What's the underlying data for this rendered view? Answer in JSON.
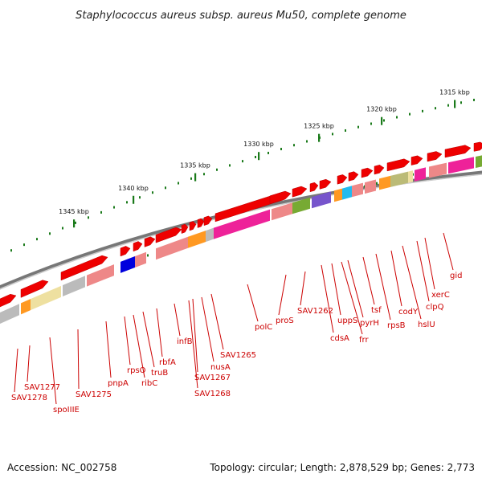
{
  "title": "Staphylococcus aureus subsp. aureus Mu50, complete genome",
  "footer": {
    "accession": "Accession: NC_002758",
    "topology": "Topology: circular; Length: 2,878,529 bp; Genes: 2,773"
  },
  "scale": {
    "tick_labels": [
      "1315 kbp",
      "1320 kbp",
      "1325 kbp",
      "1330 kbp",
      "1335 kbp",
      "1340 kbp",
      "1345 kbp"
    ]
  },
  "genes": [
    "gid",
    "xerC",
    "clpQ",
    "hslU",
    "codY",
    "rpsB",
    "tsf",
    "pyrH",
    "frr",
    "uppS",
    "cdsA",
    "SAV1262",
    "proS",
    "polC",
    "SAV1265",
    "nusA",
    "SAV1267",
    "SAV1268",
    "infB",
    "rbfA",
    "truB",
    "ribC",
    "rpsO",
    "pnpA",
    "SAV1275",
    "spoIIIE",
    "SAV1277",
    "SAV1278"
  ],
  "colors": {
    "backbone": "#888888",
    "gene_forward": "#ee0000",
    "label": "#cc0000",
    "ticks": "#1a7a1a",
    "cog_magenta": "#ee2299",
    "cog_pink": "#ee8888",
    "cog_khaki": "#eee0a0",
    "cog_olive": "#bbbb77",
    "cog_orange": "#ff9922",
    "cog_blue": "#0000dd",
    "cog_purple": "#7755cc",
    "cog_cyan": "#22bbee",
    "cog_green": "#77aa33",
    "cog_gray": "#bbbbbb"
  }
}
